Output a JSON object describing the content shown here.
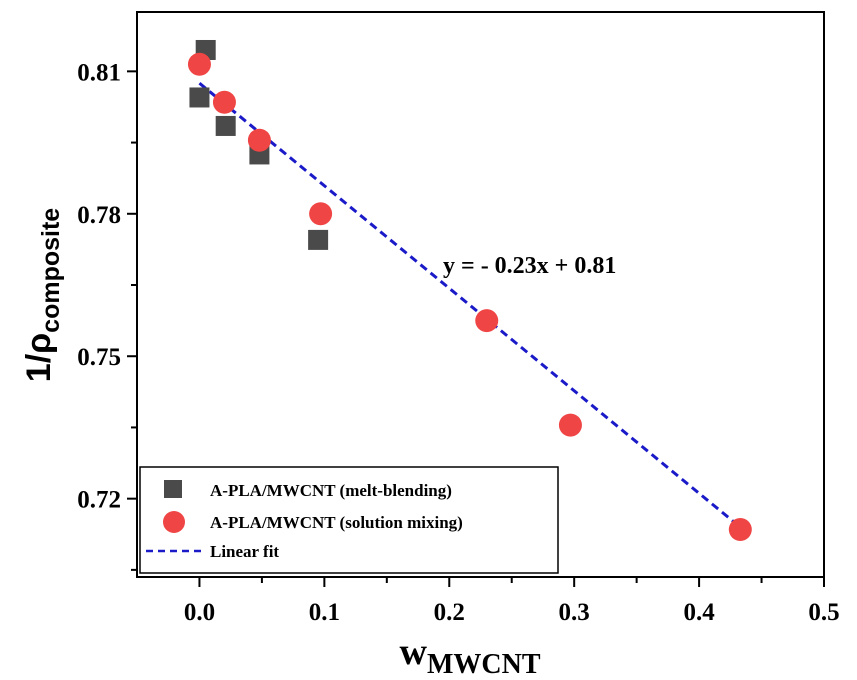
{
  "chart_data": {
    "type": "scatter",
    "xlabel": "w",
    "xlabel_sub": "MWCNT",
    "ylabel": "1/ρ",
    "ylabel_sub": "composite",
    "xlim": [
      -0.05,
      0.5
    ],
    "ylim": [
      0.7035,
      0.8225
    ],
    "x_ticks": [
      0.0,
      0.1,
      0.2,
      0.3,
      0.4,
      0.5
    ],
    "x_tick_labels": [
      "0.0",
      "0.1",
      "0.2",
      "0.3",
      "0.4",
      "0.5"
    ],
    "y_ticks": [
      0.72,
      0.75,
      0.78,
      0.81
    ],
    "y_tick_labels": [
      "0.72",
      "0.75",
      "0.78",
      "0.81"
    ],
    "grid": false,
    "legend_position": "bottom-left",
    "series": [
      {
        "name": "A-PLA/MWCNT (melt-blending)",
        "marker": "square",
        "color": "#4a4a4a",
        "x": [
          0.0,
          0.005,
          0.021,
          0.048,
          0.095
        ],
        "y": [
          0.8045,
          0.8145,
          0.7985,
          0.7925,
          0.7745
        ]
      },
      {
        "name": "A-PLA/MWCNT (solution mixing)",
        "marker": "circle",
        "color": "#f04545",
        "x": [
          0.0,
          0.02,
          0.048,
          0.097,
          0.23,
          0.297,
          0.433
        ],
        "y": [
          0.8115,
          0.8035,
          0.7955,
          0.78,
          0.7575,
          0.7355,
          0.7135
        ]
      },
      {
        "name": "Linear fit",
        "type": "line",
        "style": "dashed",
        "color": "#1a1ac8",
        "x": [
          0.0,
          0.433
        ],
        "y": [
          0.8075,
          0.714
        ]
      }
    ],
    "annotations": [
      {
        "text": "y = - 0.23x + 0.81",
        "x": 0.195,
        "y": 0.7675
      }
    ]
  }
}
